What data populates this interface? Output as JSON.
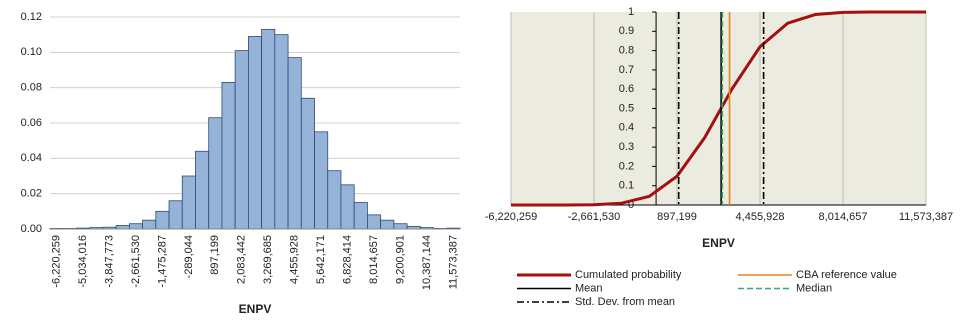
{
  "chart_data": [
    {
      "type": "bar",
      "x_label": "ENPV",
      "categories": [
        "-6,220,259",
        null,
        "-5,034,016",
        null,
        "-3,847,773",
        null,
        "-2,661,530",
        null,
        "-1,475,287",
        null,
        "-289,044",
        null,
        "897,199",
        null,
        "2,083,442",
        null,
        "3,269,685",
        null,
        "4,455,928",
        null,
        "5,642,171",
        null,
        "6,828,414",
        null,
        "8,014,657",
        null,
        "9,200,901",
        null,
        "10,387,144",
        null,
        "11,573,387"
      ],
      "values": [
        0.0003,
        0.0003,
        0.0005,
        0.0008,
        0.001,
        0.002,
        0.003,
        0.005,
        0.01,
        0.016,
        0.03,
        0.044,
        0.063,
        0.083,
        0.101,
        0.109,
        0.113,
        0.11,
        0.097,
        0.074,
        0.055,
        0.033,
        0.025,
        0.015,
        0.008,
        0.005,
        0.003,
        0.0015,
        0.0008,
        0.0003,
        0.0005
      ],
      "color": "#95b3d7",
      "edge_color": "#2e4a7a",
      "ylim": [
        0,
        0.12
      ],
      "yticks": [
        {
          "value": 0,
          "label": "0.00"
        },
        {
          "value": 0.02,
          "label": "0.02"
        },
        {
          "value": 0.04,
          "label": "0.04"
        },
        {
          "value": 0.06,
          "label": "0.06"
        },
        {
          "value": 0.08,
          "label": "0.08"
        },
        {
          "value": 0.1,
          "label": "0.10"
        },
        {
          "value": 0.12,
          "label": "0.12"
        }
      ],
      "grid": true
    },
    {
      "type": "line",
      "x_label": "ENPV",
      "x": [
        -6220259,
        -5034016,
        -3847773,
        -2661530,
        -1475287,
        -289044,
        897199,
        2083442,
        3269685,
        4455928,
        5642171,
        6828414,
        8014657,
        9200901,
        10387144,
        11573387
      ],
      "series": [
        {
          "name": "Cumulated probability",
          "color": "#a50f0f",
          "values": [
            0,
            0,
            0.0001,
            0.0014,
            0.0094,
            0.045,
            0.149,
            0.349,
            0.604,
            0.82,
            0.942,
            0.987,
            0.998,
            1,
            1,
            1
          ]
        }
      ],
      "reference_lines": [
        {
          "name": "Mean",
          "color": "#000000",
          "style": "solid",
          "x": [
            2790000
          ]
        },
        {
          "name": "Std. Dev. from mean",
          "color": "#000000",
          "style": "dashdot",
          "x": [
            970000,
            4610000
          ]
        },
        {
          "name": "CBA reference value",
          "color": "#e8821e",
          "style": "solid",
          "x": [
            3150000
          ]
        },
        {
          "name": "Median",
          "color": "#33aa77",
          "style": "dashed",
          "x": [
            2840000
          ]
        }
      ],
      "xlim": [
        -6220259,
        11573387
      ],
      "xticks": [
        {
          "value": -6220259,
          "label": "-6,220,259"
        },
        {
          "value": -2661530,
          "label": "-2,661,530"
        },
        {
          "value": 897199,
          "label": "897,199"
        },
        {
          "value": 4455928,
          "label": "4,455,928"
        },
        {
          "value": 8014657,
          "label": "8,014,657"
        },
        {
          "value": 11573387,
          "label": "11,573,387"
        }
      ],
      "ylim": [
        0,
        1
      ],
      "yticks": [
        0,
        0.1,
        0.2,
        0.3,
        0.4,
        0.5,
        0.6,
        0.7,
        0.8,
        0.9,
        1
      ],
      "grid": true,
      "background": "#ecebdf"
    }
  ]
}
